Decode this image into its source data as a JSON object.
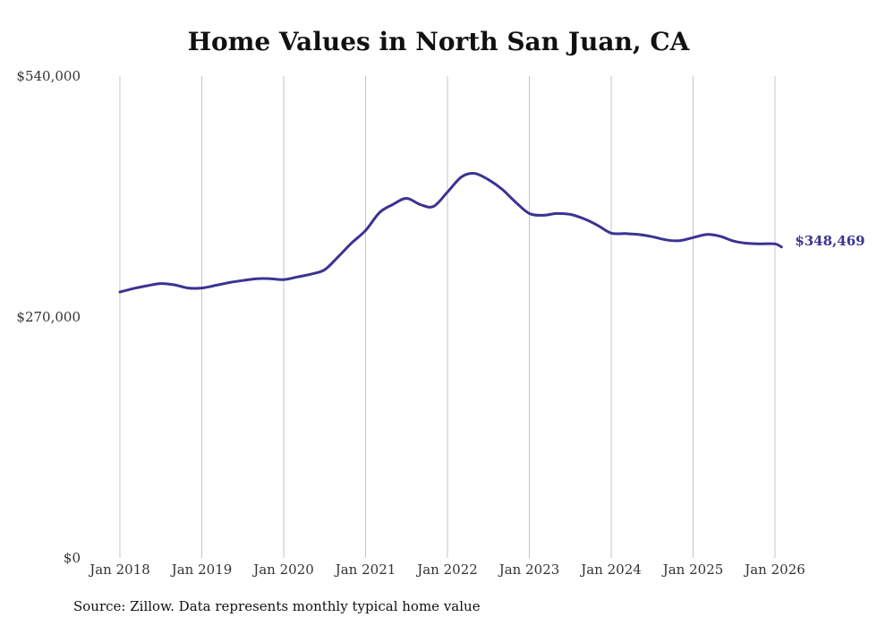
{
  "chart_data": {
    "type": "line",
    "title": "Home Values in North San Juan, CA",
    "source": "Source: Zillow. Data represents monthly typical home value",
    "xlabel": "",
    "ylabel": "",
    "ylim": [
      0,
      540000
    ],
    "y_ticks": [
      {
        "value": 0,
        "label": "$0"
      },
      {
        "value": 270000,
        "label": "$270,000"
      },
      {
        "value": 540000,
        "label": "$540,000"
      }
    ],
    "x_ticks": [
      {
        "value": 2018,
        "label": "Jan 2018"
      },
      {
        "value": 2019,
        "label": "Jan 2019"
      },
      {
        "value": 2020,
        "label": "Jan 2020"
      },
      {
        "value": 2021,
        "label": "Jan 2021"
      },
      {
        "value": 2022,
        "label": "Jan 2022"
      },
      {
        "value": 2023,
        "label": "Jan 2023"
      },
      {
        "value": 2024,
        "label": "Jan 2024"
      },
      {
        "value": 2025,
        "label": "Jan 2025"
      },
      {
        "value": 2026,
        "label": "Jan 2026"
      }
    ],
    "xlim": [
      2018,
      2026
    ],
    "grid": "vertical",
    "line_color": "#3b3392",
    "end_label": "$348,469",
    "series": [
      {
        "name": "Home value",
        "x": [
          2018.0,
          2018.17,
          2018.33,
          2018.5,
          2018.67,
          2018.83,
          2019.0,
          2019.17,
          2019.33,
          2019.5,
          2019.67,
          2019.83,
          2020.0,
          2020.17,
          2020.33,
          2020.5,
          2020.67,
          2020.83,
          2021.0,
          2021.17,
          2021.33,
          2021.5,
          2021.67,
          2021.83,
          2022.0,
          2022.17,
          2022.33,
          2022.5,
          2022.67,
          2022.83,
          2023.0,
          2023.17,
          2023.33,
          2023.5,
          2023.67,
          2023.83,
          2024.0,
          2024.17,
          2024.33,
          2024.5,
          2024.67,
          2024.83,
          2025.0,
          2025.17,
          2025.33,
          2025.5,
          2025.67,
          2025.83,
          2026.0,
          2026.08
        ],
        "values": [
          298000,
          302000,
          305000,
          307500,
          306000,
          302500,
          302500,
          305500,
          308500,
          311000,
          313000,
          313000,
          312000,
          315000,
          318000,
          323000,
          338000,
          353000,
          367000,
          387000,
          396000,
          403000,
          396000,
          394000,
          410000,
          427000,
          431000,
          424000,
          413000,
          399000,
          386000,
          384000,
          386000,
          385000,
          380000,
          373000,
          364000,
          363500,
          362500,
          360000,
          356500,
          355500,
          359000,
          362500,
          360500,
          355000,
          352500,
          352000,
          352000,
          348469
        ]
      }
    ]
  }
}
